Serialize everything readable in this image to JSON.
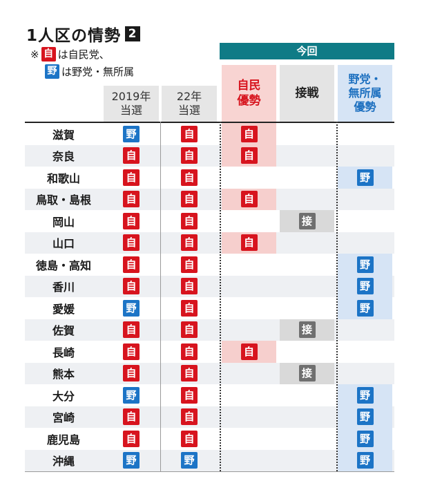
{
  "title": "1人区の情勢",
  "title_num": "2",
  "legend": {
    "line1_prefix": "※",
    "line1_chip": "自",
    "line1_text": "は自民党、",
    "line2_chip": "野",
    "line2_text": "は野党・無所属"
  },
  "headers": {
    "konkai": "今回",
    "y2019_a": "2019年",
    "y2019_b": "当選",
    "y22_a": "22年",
    "y22_b": "当選",
    "jimin_a": "自民",
    "jimin_b": "優勢",
    "sen": "接戦",
    "yato_a": "野党・",
    "yato_b": "無所属",
    "yato_c": "優勢"
  },
  "rows": [
    {
      "name": "滋賀",
      "y2019": "野",
      "y22": "自",
      "now": "自"
    },
    {
      "name": "奈良",
      "y2019": "自",
      "y22": "自",
      "now": "自"
    },
    {
      "name": "和歌山",
      "y2019": "自",
      "y22": "自",
      "now": "野"
    },
    {
      "name": "鳥取・島根",
      "y2019": "自",
      "y22": "自",
      "now": "自"
    },
    {
      "name": "岡山",
      "y2019": "自",
      "y22": "自",
      "now": "接"
    },
    {
      "name": "山口",
      "y2019": "自",
      "y22": "自",
      "now": "自"
    },
    {
      "name": "徳島・高知",
      "y2019": "自",
      "y22": "自",
      "now": "野"
    },
    {
      "name": "香川",
      "y2019": "自",
      "y22": "自",
      "now": "野"
    },
    {
      "name": "愛媛",
      "y2019": "野",
      "y22": "自",
      "now": "野"
    },
    {
      "name": "佐賀",
      "y2019": "自",
      "y22": "自",
      "now": "接"
    },
    {
      "name": "長崎",
      "y2019": "自",
      "y22": "自",
      "now": "自"
    },
    {
      "name": "熊本",
      "y2019": "自",
      "y22": "自",
      "now": "接"
    },
    {
      "name": "大分",
      "y2019": "野",
      "y22": "自",
      "now": "野"
    },
    {
      "name": "宮崎",
      "y2019": "自",
      "y22": "自",
      "now": "野"
    },
    {
      "name": "鹿児島",
      "y2019": "自",
      "y22": "自",
      "now": "野"
    },
    {
      "name": "沖縄",
      "y2019": "野",
      "y22": "野",
      "now": "野"
    }
  ],
  "colors": {
    "jimin": "#d7141e",
    "yato": "#1c74c6",
    "sen": "#6f6f6f",
    "teal": "#0f7b86"
  }
}
